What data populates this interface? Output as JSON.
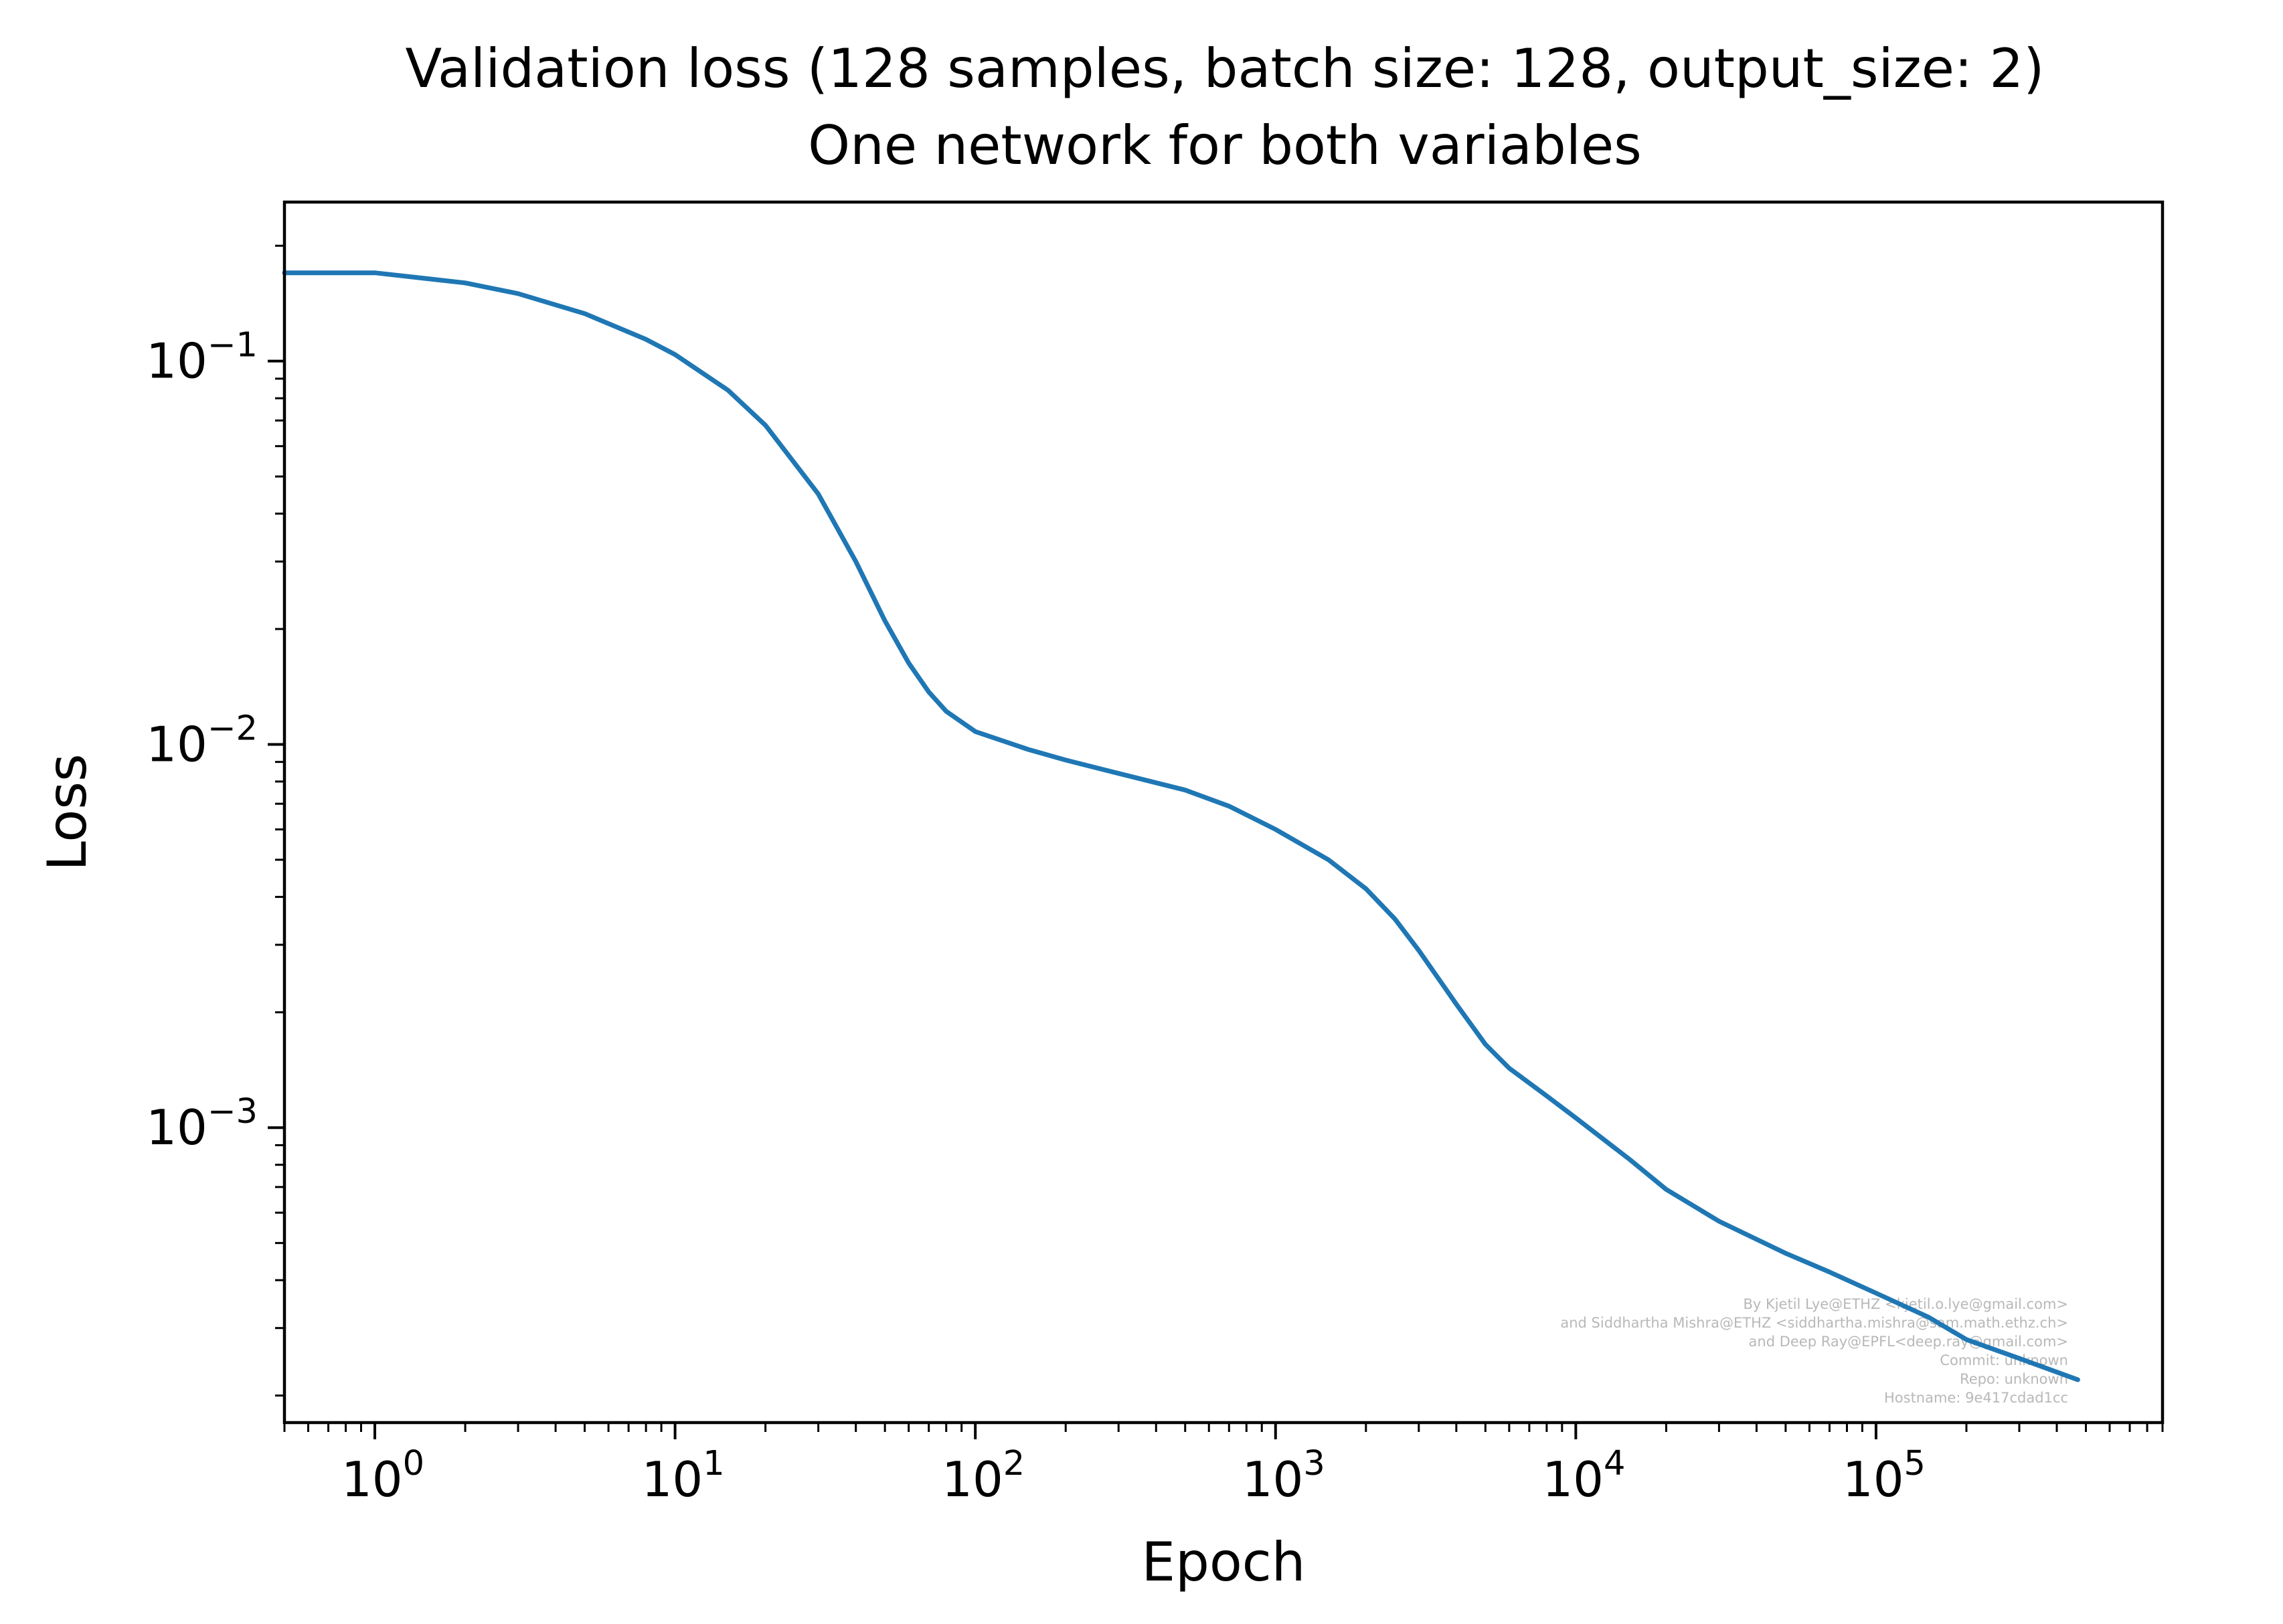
{
  "chart_data": {
    "type": "line",
    "title": "Validation loss (128 samples, batch size: 128, output_size: 2)",
    "subtitle": "One network for both variables",
    "xlabel": "Epoch",
    "ylabel": "Loss",
    "xscale": "log",
    "yscale": "log",
    "xlim": [
      0.5,
      900000
    ],
    "ylim": [
      0.00017,
      0.26
    ],
    "grid": false,
    "legend": "none",
    "x_ticks": [
      {
        "value": 1,
        "base": "10",
        "exp": "0"
      },
      {
        "value": 10,
        "base": "10",
        "exp": "1"
      },
      {
        "value": 100,
        "base": "10",
        "exp": "2"
      },
      {
        "value": 1000,
        "base": "10",
        "exp": "3"
      },
      {
        "value": 10000,
        "base": "10",
        "exp": "4"
      },
      {
        "value": 100000,
        "base": "10",
        "exp": "5"
      }
    ],
    "y_ticks": [
      {
        "value": 0.1,
        "base": "10",
        "exp": "−1"
      },
      {
        "value": 0.01,
        "base": "10",
        "exp": "−2"
      },
      {
        "value": 0.001,
        "base": "10",
        "exp": "−3"
      }
    ],
    "series": [
      {
        "color": "#1f77b4",
        "x": [
          0.5,
          1,
          2,
          3,
          5,
          8,
          10,
          15,
          20,
          30,
          40,
          50,
          60,
          70,
          80,
          100,
          150,
          200,
          300,
          500,
          700,
          1000,
          1500,
          2000,
          2500,
          3000,
          4000,
          5000,
          6000,
          8000,
          10000,
          15000,
          20000,
          30000,
          50000,
          70000,
          100000,
          150000,
          200000,
          300000,
          470000
        ],
        "y": [
          0.17,
          0.17,
          0.16,
          0.15,
          0.133,
          0.114,
          0.104,
          0.084,
          0.068,
          0.045,
          0.03,
          0.021,
          0.0163,
          0.0137,
          0.0122,
          0.0108,
          0.0097,
          0.0091,
          0.0084,
          0.0076,
          0.0069,
          0.006,
          0.005,
          0.0042,
          0.0035,
          0.0029,
          0.0021,
          0.00165,
          0.00143,
          0.00121,
          0.00106,
          0.00083,
          0.00069,
          0.00057,
          0.00047,
          0.00042,
          0.00037,
          0.00032,
          0.00028,
          0.00025,
          0.00022
        ]
      }
    ],
    "watermark": [
      "By Kjetil Lye@ETHZ <kjetil.o.lye@gmail.com>",
      "and Siddhartha Mishra@ETHZ <siddhartha.mishra@sam.math.ethz.ch>",
      "and Deep Ray@EPFL<deep.ray@gmail.com>",
      "Commit: unknown",
      "Repo: unknown",
      "Hostname: 9e417cdad1cc"
    ]
  }
}
